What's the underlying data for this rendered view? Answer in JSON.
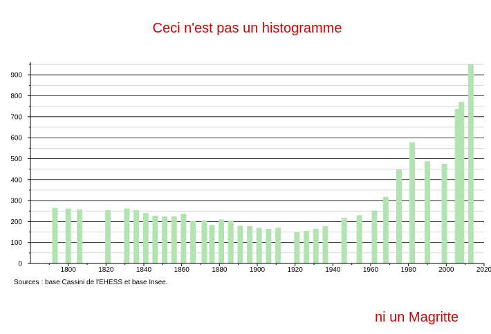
{
  "header": {
    "title": "Ceci n'est pas un histogramme"
  },
  "source_note": "Sources : base Cassini de l'EHESS et base Insee.",
  "footer_caption": "ni un Magritte",
  "colors": {
    "bar": "#b2e4b2",
    "title": "#d50000",
    "grid": "#000000"
  },
  "chart_data": {
    "type": "bar",
    "title": "Ceci n'est pas un histogramme",
    "xlabel": "",
    "ylabel": "",
    "xlim": [
      1780,
      2020
    ],
    "ylim": [
      0,
      960
    ],
    "y_ticks": [
      0,
      100,
      200,
      300,
      400,
      500,
      600,
      700,
      800,
      900
    ],
    "x_ticks": [
      1800,
      1820,
      1840,
      1860,
      1880,
      1900,
      1920,
      1940,
      1960,
      1980,
      2000,
      2020
    ],
    "grid": true,
    "legend": "none",
    "x": [
      1793,
      1800,
      1806,
      1821,
      1831,
      1836,
      1841,
      1846,
      1851,
      1856,
      1861,
      1866,
      1872,
      1876,
      1881,
      1886,
      1891,
      1896,
      1901,
      1906,
      1911,
      1921,
      1926,
      1931,
      1936,
      1946,
      1954,
      1962,
      1968,
      1975,
      1982,
      1990,
      1999,
      2006,
      2008,
      2013
    ],
    "values": [
      265,
      262,
      258,
      255,
      262,
      254,
      240,
      228,
      225,
      225,
      238,
      203,
      205,
      183,
      210,
      205,
      180,
      178,
      170,
      165,
      170,
      150,
      155,
      165,
      178,
      218,
      230,
      252,
      318,
      448,
      578,
      488,
      475,
      738,
      772,
      950
    ]
  }
}
